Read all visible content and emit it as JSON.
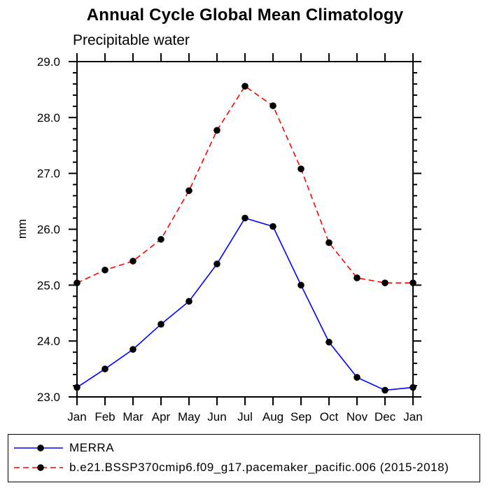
{
  "chart_data": {
    "type": "line",
    "title": "Annual Cycle Global Mean Climatology",
    "subtitle": "Precipitable water",
    "ylabel": "mm",
    "categories": [
      "Jan",
      "Feb",
      "Mar",
      "Apr",
      "May",
      "Jun",
      "Jul",
      "Aug",
      "Sep",
      "Oct",
      "Nov",
      "Dec",
      "Jan"
    ],
    "ylim": [
      23.0,
      29.0
    ],
    "ytick_major": 1.0,
    "ytick_minor": 0.2,
    "ytick_labels": [
      "23.0",
      "24.0",
      "25.0",
      "26.0",
      "27.0",
      "28.0",
      "29.0"
    ],
    "grid": false,
    "legend_position": "bottom-left-box",
    "series": [
      {
        "name": "MERRA",
        "color": "#0000ff",
        "line_style": "solid",
        "marker": "circle",
        "marker_color": "#000000",
        "values": [
          23.17,
          23.5,
          23.85,
          24.3,
          24.71,
          25.38,
          26.2,
          26.05,
          25.0,
          23.98,
          23.35,
          23.12,
          23.17
        ]
      },
      {
        "name": "b.e21.BSSP370cmip6.f09_g17.pacemaker_pacific.006 (2015-2018)",
        "color": "#ff0000",
        "line_style": "dashed",
        "marker": "circle",
        "marker_color": "#000000",
        "values": [
          25.04,
          25.27,
          25.43,
          25.82,
          26.69,
          27.77,
          28.56,
          28.21,
          27.08,
          25.76,
          25.13,
          25.04,
          25.04
        ]
      }
    ],
    "colors": {
      "axis": "#000000",
      "text": "#000000",
      "background": "#ffffff"
    }
  }
}
